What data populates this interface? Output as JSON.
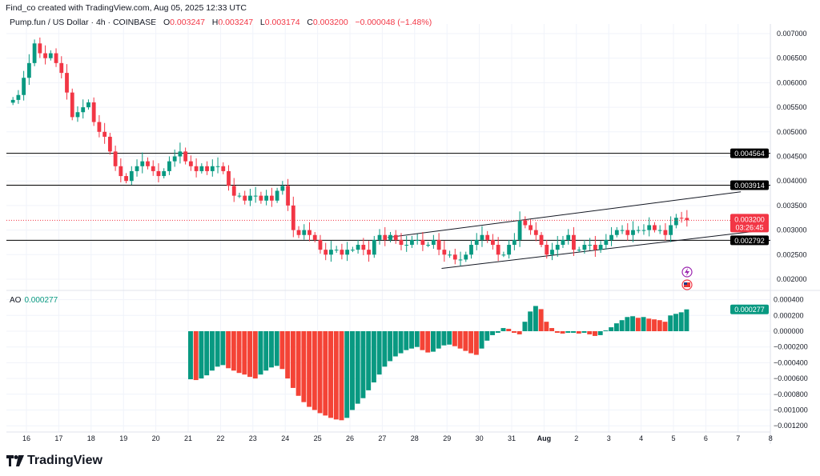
{
  "credit": "Find_co created with TradingView.com, Aug 05, 2025 12:33 UTC",
  "legend": {
    "symbol": "Pump.fun / US Dollar · 4h · COINBASE",
    "o_label": "O",
    "o": "0.003247",
    "h_label": "H",
    "h": "0.003247",
    "l_label": "L",
    "l": "0.003174",
    "c_label": "C",
    "c": "0.003200",
    "change": "−0.000048 (−1.48%)"
  },
  "ao_legend": {
    "label": "AO",
    "value": "0.000277"
  },
  "logo_text": "TradingView",
  "icons": [
    "lightning-icon",
    "us-flag-icon"
  ],
  "colors": {
    "up": "#089981",
    "down": "#f23645",
    "ao_up": "#089981",
    "ao_down": "#f44336",
    "price_label": "#f23645",
    "level_label": "#000000"
  },
  "chart_data": [
    {
      "type": "candlestick",
      "interval": "4h",
      "first_candle": "2025-07-15 12:00",
      "ylim": [
        0.0018,
        0.0072
      ],
      "y_ticks": [
        "0.007000",
        "0.006500",
        "0.006000",
        "0.005500",
        "0.005000",
        "0.004500",
        "0.004000",
        "0.003500",
        "0.003000",
        "0.002500",
        "0.002000"
      ],
      "x_ticks": [
        "16",
        "17",
        "18",
        "19",
        "20",
        "21",
        "22",
        "23",
        "24",
        "25",
        "26",
        "27",
        "28",
        "29",
        "30",
        "31",
        "Aug",
        "2",
        "3",
        "4",
        "5",
        "6",
        "7",
        "8"
      ],
      "closes": [
        0.00565,
        0.00575,
        0.0061,
        0.0064,
        0.0068,
        0.0066,
        0.0065,
        0.0066,
        0.0064,
        0.0062,
        0.0058,
        0.0053,
        0.0054,
        0.0055,
        0.0056,
        0.0052,
        0.005,
        0.0049,
        0.0046,
        0.0043,
        0.0041,
        0.004,
        0.0042,
        0.0043,
        0.0044,
        0.0043,
        0.0042,
        0.0041,
        0.0042,
        0.0044,
        0.0045,
        0.0046,
        0.0044,
        0.0043,
        0.0042,
        0.0043,
        0.0042,
        0.0043,
        0.0043,
        0.0042,
        0.0039,
        0.0037,
        0.0037,
        0.0036,
        0.0037,
        0.0037,
        0.0036,
        0.0037,
        0.0036,
        0.0038,
        0.0039,
        0.0035,
        0.003,
        0.0029,
        0.003,
        0.0029,
        0.0028,
        0.0026,
        0.0025,
        0.0026,
        0.0026,
        0.0025,
        0.0026,
        0.0026,
        0.0027,
        0.0026,
        0.0025,
        0.0028,
        0.0029,
        0.0028,
        0.0029,
        0.0028,
        0.0027,
        0.0027,
        0.0028,
        0.0028,
        0.0027,
        0.0027,
        0.0028,
        0.0026,
        0.0025,
        0.0025,
        0.0024,
        0.0024,
        0.0025,
        0.0027,
        0.0028,
        0.0029,
        0.0028,
        0.0027,
        0.0025,
        0.0025,
        0.0027,
        0.0028,
        0.0032,
        0.0031,
        0.003,
        0.0029,
        0.0027,
        0.0025,
        0.0026,
        0.0027,
        0.0028,
        0.0029,
        0.0026,
        0.0026,
        0.0027,
        0.0027,
        0.0026,
        0.0027,
        0.0028,
        0.0029,
        0.003,
        0.003,
        0.0029,
        0.003,
        0.003,
        0.003,
        0.0031,
        0.003,
        0.003,
        0.0029,
        0.0031,
        0.00325,
        0.003247,
        0.0032
      ],
      "horizontal_levels": [
        "0.004564",
        "0.003914",
        "0.002792"
      ],
      "current_price": {
        "value": "0.003200",
        "countdown": "03:26:45"
      },
      "trendlines": [
        {
          "from": [
            "2025-07-27 04:00",
            0.00285
          ],
          "to": [
            "2025-08-07 02:00",
            0.00378
          ]
        },
        {
          "from": [
            "2025-07-28 20:00",
            0.00222
          ],
          "to": [
            "2025-08-07 20:00",
            0.003
          ]
        }
      ],
      "grid": true
    },
    {
      "type": "histogram",
      "name": "AO",
      "first_bar": "2025-07-21 00:00",
      "ylim": [
        -0.0013,
        0.0005
      ],
      "y_ticks": [
        "0.000400",
        "0.000200",
        "0.000000",
        "−0.000200",
        "−0.000400",
        "−0.000600",
        "−0.000800",
        "−0.001000",
        "−0.001200"
      ],
      "values": [
        -0.00061,
        -0.00062,
        -0.0006,
        -0.00056,
        -0.0005,
        -0.00045,
        -0.00043,
        -0.00047,
        -0.0005,
        -0.00053,
        -0.00055,
        -0.00058,
        -0.0006,
        -0.00055,
        -0.0005,
        -0.00046,
        -0.00044,
        -0.00048,
        -0.0006,
        -0.00072,
        -0.00082,
        -0.0009,
        -0.00096,
        -0.001,
        -0.00104,
        -0.00107,
        -0.0011,
        -0.00112,
        -0.00113,
        -0.0011,
        -0.001,
        -0.00092,
        -0.00085,
        -0.00075,
        -0.00065,
        -0.00055,
        -0.00045,
        -0.00038,
        -0.00032,
        -0.00028,
        -0.00024,
        -0.00022,
        -0.0002,
        -0.00024,
        -0.00027,
        -0.00026,
        -0.00022,
        -0.00018,
        -0.00017,
        -0.00019,
        -0.00022,
        -0.00025,
        -0.00028,
        -0.0003,
        -0.00022,
        -0.00012,
        -5e-05,
        -2e-05,
        4e-05,
        3e-05,
        -2e-05,
        -4e-05,
        0.00012,
        0.00025,
        0.00032,
        0.00028,
        0.00012,
        4e-05,
        -2e-05,
        -3e-05,
        -2e-05,
        -2e-05,
        -3e-05,
        -2e-05,
        -4e-05,
        -6e-05,
        -5e-05,
        1e-05,
        5e-05,
        0.0001,
        0.00014,
        0.00018,
        0.00019,
        0.00017,
        0.00018,
        0.00016,
        0.00015,
        0.00014,
        0.00012,
        0.0002,
        0.00022,
        0.00024,
        0.000277
      ],
      "current_value": "0.000277"
    }
  ]
}
